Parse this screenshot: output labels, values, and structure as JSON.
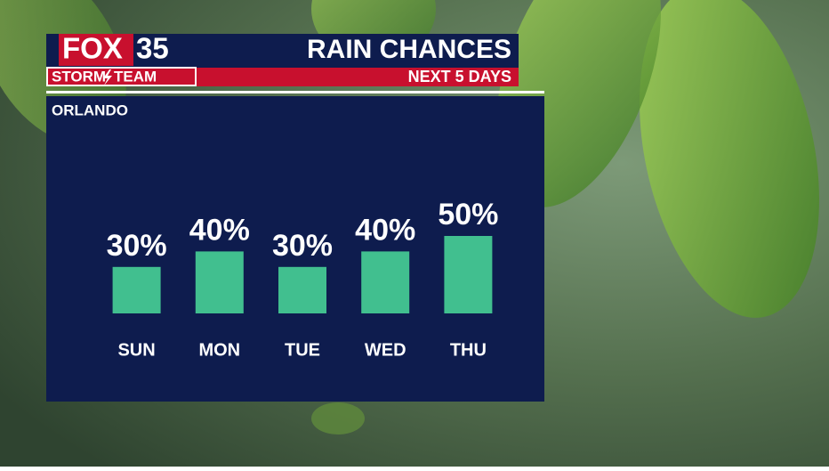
{
  "branding": {
    "network": "FOX",
    "channel": "35",
    "team_left": "STORM",
    "team_right": "TEAM"
  },
  "chart_data": {
    "type": "bar",
    "title": "RAIN CHANCES",
    "subtitle": "NEXT 5 DAYS",
    "location": "ORLANDO",
    "categories": [
      "SUN",
      "MON",
      "TUE",
      "WED",
      "THU"
    ],
    "values": [
      30,
      40,
      30,
      40,
      50
    ],
    "value_labels": [
      "30%",
      "40%",
      "30%",
      "40%",
      "50%"
    ],
    "color": "#41bf8f"
  }
}
